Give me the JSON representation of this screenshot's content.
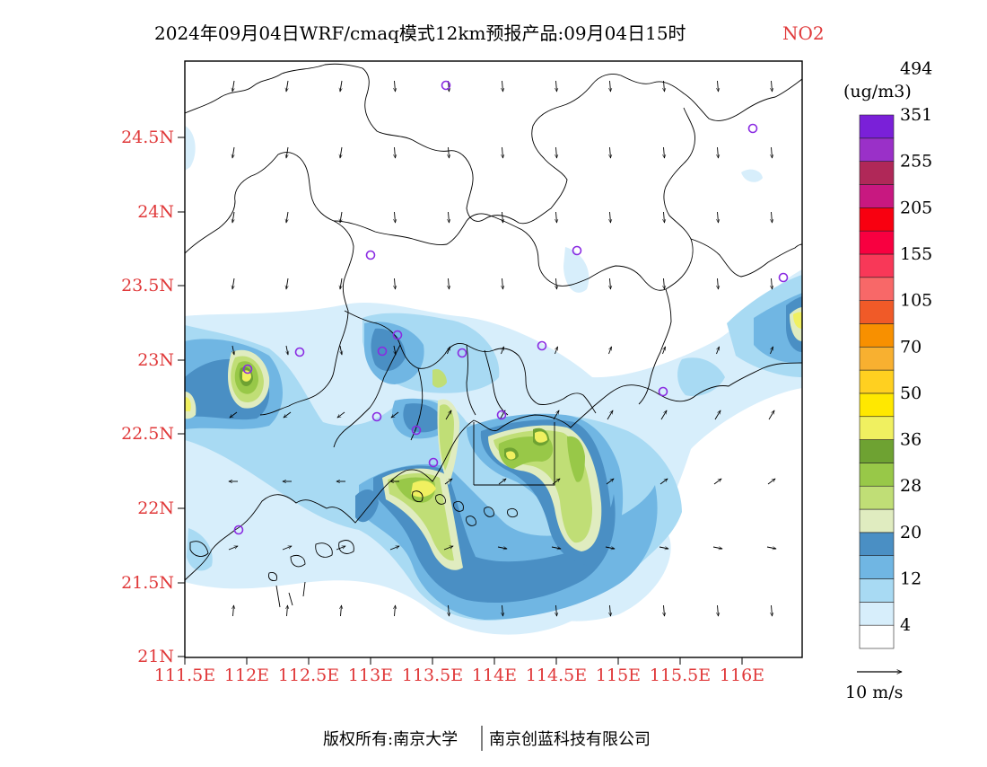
{
  "header": {
    "title": "2024年09月04日WRF/cmaq模式12km预报产品:09月04日15时",
    "species": "NO2"
  },
  "map": {
    "lat_ticks": [
      "24.5N",
      "24N",
      "23.5N",
      "23N",
      "22.5N",
      "22N",
      "21.5N",
      "21N"
    ],
    "lon_ticks": [
      "111.5E",
      "112E",
      "112.5E",
      "113E",
      "113.5E",
      "114E",
      "114.5E",
      "115E",
      "115.5E",
      "116E"
    ],
    "tick_color": "#e0393a"
  },
  "legend": {
    "unit": "(ug/m3)",
    "labels": [
      "4",
      "12",
      "20",
      "28",
      "36",
      "50",
      "70",
      "105",
      "155",
      "205",
      "255",
      "351",
      "494"
    ],
    "colors": [
      "#ffffff",
      "#d7eefb",
      "#a8daf3",
      "#70b6e3",
      "#4a8fc4",
      "#e0ecc0",
      "#c0de76",
      "#98c848",
      "#6ea232",
      "#f0f060",
      "#ffe800",
      "#ffd020",
      "#f8b030",
      "#f89000",
      "#f05a28",
      "#f86868",
      "#f83858",
      "#f80040",
      "#f80010",
      "#c81880",
      "#b02858",
      "#9a30c8",
      "#7a20d8"
    ]
  },
  "wind_key": {
    "label": "10 m/s"
  },
  "footer": {
    "left": "版权所有:南京大学",
    "right": "南京创蓝科技有限公司"
  }
}
